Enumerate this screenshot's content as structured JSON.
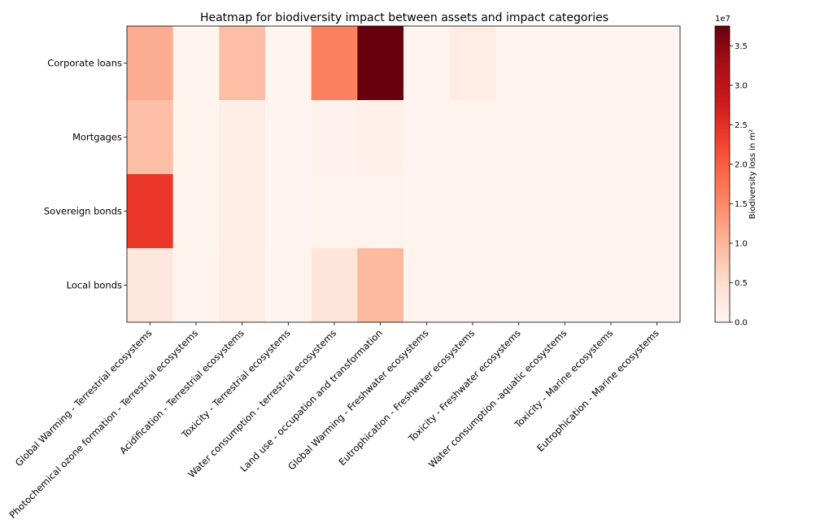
{
  "chart_data": {
    "type": "heatmap",
    "title": "Heatmap for biodiversity impact between assets and impact categories",
    "rows": [
      "Corporate loans",
      "Mortgages",
      "Sovereign bonds",
      "Local bonds"
    ],
    "columns": [
      "Global Warming - Terrestrial ecosystems",
      "Photochemical ozone formation - Terrestrial ecosystems",
      "Acidification - Terrestrial ecosystems",
      "Toxicity - Terrestrial ecosystems",
      "Water consumption - terrestrial ecosystems",
      "Land use - occupation and transformation",
      "Global Warming - Freshwater ecosystems",
      "Eutrophication - Freshwater ecosystems",
      "Toxicity - Freshwater ecosystems",
      "Water consumption -aquatic ecosystems",
      "Toxicity - Marine ecosystems",
      "Eutrophication - Marine ecosystems"
    ],
    "values": [
      [
        11000000,
        100000,
        9000000,
        50000,
        16000000,
        37500000,
        200000,
        2000000,
        50000,
        50000,
        50000,
        50000
      ],
      [
        9000000,
        100000,
        1500000,
        50000,
        800000,
        1000000,
        200000,
        300000,
        50000,
        50000,
        50000,
        50000
      ],
      [
        24000000,
        100000,
        1500000,
        50000,
        500000,
        500000,
        100000,
        300000,
        50000,
        50000,
        50000,
        50000
      ],
      [
        3000000,
        100000,
        2000000,
        50000,
        3500000,
        9500000,
        500000,
        500000,
        50000,
        50000,
        50000,
        50000
      ]
    ],
    "colorbar": {
      "label": "Biodiversity loss in m²",
      "multiplier": "1e7",
      "min": 0,
      "max": 37500000,
      "ticks": [
        0.0,
        0.5,
        1.0,
        1.5,
        2.0,
        2.5,
        3.0,
        3.5
      ],
      "tick_scale": 10000000,
      "colormap": "Reds"
    }
  }
}
